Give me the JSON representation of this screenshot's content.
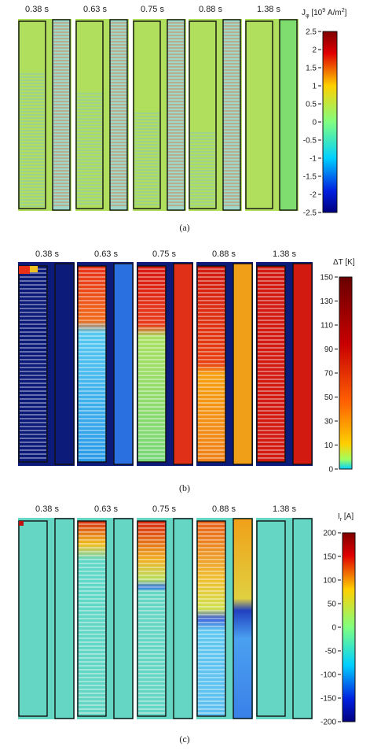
{
  "panels": [
    {
      "id": "a",
      "caption": "(a)",
      "times": [
        "0.38 s",
        "0.63 s",
        "0.75 s",
        "0.88 s",
        "1.38 s"
      ],
      "colorbar": {
        "title_main": "J",
        "title_sub": "φ",
        "title_rest": " [10",
        "title_exp": "9",
        "title_unit": " A/m",
        "title_exp2": "2",
        "title_end": "]",
        "colormap": "jet",
        "ticks": [
          "2.5",
          "2",
          "1.5",
          "1",
          "0.5",
          "0",
          "-0.5",
          "-1",
          "-1.5",
          "-2",
          "-2.5"
        ],
        "range": [
          -2.5,
          2.5
        ]
      }
    },
    {
      "id": "b",
      "caption": "(b)",
      "times": [
        "0.38 s",
        "0.63 s",
        "0.75 s",
        "0.88 s",
        "1.38 s"
      ],
      "colorbar": {
        "title": "ΔT [K]",
        "colormap": "hot-jet",
        "ticks": [
          "150",
          "130",
          "110",
          "90",
          "70",
          "50",
          "30",
          "10",
          "0"
        ],
        "range": [
          0,
          150
        ]
      }
    },
    {
      "id": "c",
      "caption": "(c)",
      "times": [
        "0.38 s",
        "0.63 s",
        "0.75 s",
        "0.88 s",
        "1.38 s"
      ],
      "colorbar": {
        "title_main": "I",
        "title_sub": "r",
        "title_rest": " [A]",
        "colormap": "jet",
        "ticks": [
          "200",
          "150",
          "100",
          "50",
          "0",
          "-50",
          "-100",
          "-150",
          "-200"
        ],
        "range": [
          -200,
          200
        ]
      }
    }
  ],
  "colors": {
    "jet_green": "#7fdc6f",
    "navy": "#0c1a7a",
    "frame": "#111111"
  }
}
